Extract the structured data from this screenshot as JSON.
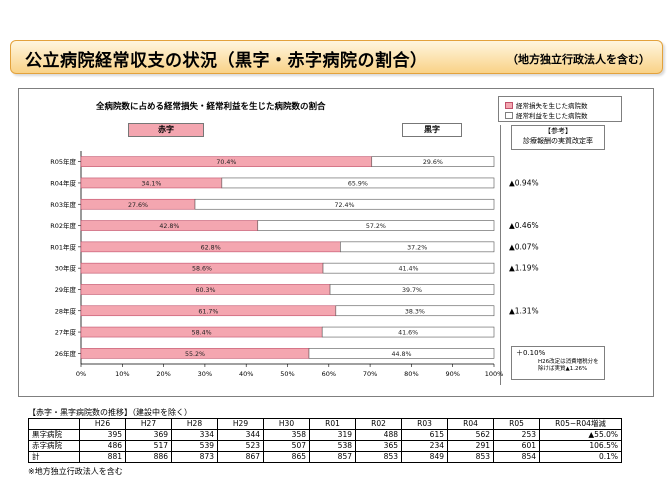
{
  "header": {
    "title": "公立病院経常収支の状況（黒字・赤字病院の割合）",
    "subtitle": "（地方独立行政法人を含む）"
  },
  "legend": {
    "loss_label": "経常損失を生じた病院数",
    "profit_label": "経常利益を生じた病院数"
  },
  "labels": {
    "red": "赤字",
    "black": "黒字",
    "ref_title": "【参考】",
    "ref_subtitle": "診療報酬の実質改定率",
    "note_1": "＋0.10%",
    "note_2": "H26改定は消費増税分を除けば実質▲1.26%"
  },
  "colors": {
    "loss_fill": "#f4a6b0",
    "loss_stroke": "#c0506a",
    "profit_fill": "#ffffff",
    "red_label_bg": "#f4a6b0",
    "header_gradient_top": "#fff6df",
    "header_gradient_bottom": "#f9d287",
    "header_border": "#e3a23c"
  },
  "chart_data": {
    "type": "bar",
    "orientation": "horizontal",
    "stacked": true,
    "title": "全病院数に占める経常損失・経常利益を生じた病院数の割合",
    "categories": [
      "R05年度",
      "R04年度",
      "R03年度",
      "R02年度",
      "R01年度",
      "30年度",
      "29年度",
      "28年度",
      "27年度",
      "26年度"
    ],
    "series": [
      {
        "name": "経常損失を生じた病院数",
        "values": [
          70.4,
          34.1,
          27.6,
          42.8,
          62.8,
          58.6,
          60.3,
          61.7,
          58.4,
          55.2
        ]
      },
      {
        "name": "経常利益を生じた病院数",
        "values": [
          29.6,
          65.9,
          72.4,
          57.2,
          37.2,
          41.4,
          39.7,
          38.3,
          41.6,
          44.8
        ]
      }
    ],
    "value_labels": {
      "loss": [
        "70.4%",
        "34.1%",
        "27.6%",
        "42.8%",
        "62.8%",
        "58.6%",
        "60.3%",
        "61.7%",
        "58.4%",
        "55.2%"
      ],
      "profit": [
        "29.6%",
        "65.9%",
        "72.4%",
        "57.2%",
        "37.2%",
        "41.4%",
        "39.7%",
        "38.3%",
        "41.6%",
        "44.8%"
      ]
    },
    "xlim": [
      0,
      100
    ],
    "x_ticks": [
      "0%",
      "10%",
      "20%",
      "30%",
      "40%",
      "50%",
      "60%",
      "70%",
      "80%",
      "90%",
      "100%"
    ],
    "grid": false,
    "legend_position": "top-right",
    "revision_rates": [
      "",
      "▲0.94%",
      "",
      "▲0.46%",
      "▲0.07%",
      "▲1.19%",
      "",
      "▲1.31%",
      "",
      ""
    ]
  },
  "table": {
    "caption": "【赤字・黒字病院数の推移】（建設中を除く）",
    "headers": [
      "",
      "H26",
      "H27",
      "H28",
      "H29",
      "H30",
      "R01",
      "R02",
      "R03",
      "R04",
      "R05",
      "R05−R04増減"
    ],
    "rows": [
      [
        "黒字病院",
        "395",
        "369",
        "334",
        "344",
        "358",
        "319",
        "488",
        "615",
        "562",
        "253",
        "▲55.0%"
      ],
      [
        "赤字病院",
        "486",
        "517",
        "539",
        "523",
        "507",
        "538",
        "365",
        "234",
        "291",
        "601",
        "106.5%"
      ],
      [
        "計",
        "881",
        "886",
        "873",
        "867",
        "865",
        "857",
        "853",
        "849",
        "853",
        "854",
        "0.1%"
      ]
    ],
    "footnote": "※地方独立行政法人を含む"
  }
}
